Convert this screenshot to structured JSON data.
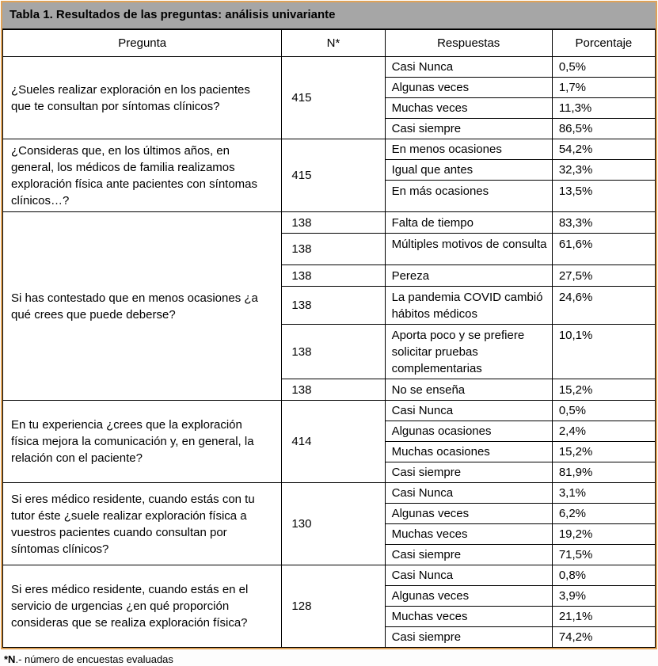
{
  "colors": {
    "frame_border": "#dfa258",
    "title_bg": "#a6a6a6"
  },
  "table": {
    "title": "Tabla 1. Resultados de las preguntas: análisis univariante",
    "headers": [
      "Pregunta",
      "N*",
      "Respuestas",
      "Porcentaje"
    ],
    "blocks": [
      {
        "question": "¿Sueles realizar exploración en los pacientes que te consultan por síntomas clínicos?",
        "n": "415",
        "rows": [
          {
            "response": "Casi Nunca",
            "pct": "0,5%"
          },
          {
            "response": "Algunas veces",
            "pct": "1,7%"
          },
          {
            "response": "Muchas veces",
            "pct": "11,3%"
          },
          {
            "response": "Casi siempre",
            "pct": "86,5%"
          }
        ]
      },
      {
        "question": "¿Consideras que, en los últimos años, en general, los médicos de familia realizamos exploración física ante pacientes con síntomas clínicos…?",
        "n": "415",
        "rows": [
          {
            "response": "En menos ocasiones",
            "pct": "54,2%"
          },
          {
            "response": "Igual que antes",
            "pct": "32,3%"
          },
          {
            "response": "En más ocasiones",
            "pct": "13,5%"
          }
        ]
      },
      {
        "question": "Si has contestado que en menos ocasiones ¿a qué crees que puede deberse?",
        "rows": [
          {
            "n": "138",
            "response": "Falta de tiempo",
            "pct": "83,3%"
          },
          {
            "n": "138",
            "response": "Múltiples motivos de consulta",
            "pct": "61,6%"
          },
          {
            "n": "138",
            "response": "Pereza",
            "pct": "27,5%"
          },
          {
            "n": "138",
            "response": "La pandemia COVID cambió hábitos médicos",
            "pct": "24,6%"
          },
          {
            "n": "138",
            "response": "Aporta poco y se prefiere solicitar pruebas complementarias",
            "pct": "10,1%"
          },
          {
            "n": "138",
            "response": "No se enseña",
            "pct": "15,2%"
          }
        ]
      },
      {
        "question": "En tu experiencia ¿crees que la exploración física mejora la comunicación y, en general, la relación con el paciente?",
        "n": "414",
        "rows": [
          {
            "response": "Casi Nunca",
            "pct": "0,5%"
          },
          {
            "response": "Algunas ocasiones",
            "pct": "2,4%"
          },
          {
            "response": "Muchas ocasiones",
            "pct": "15,2%"
          },
          {
            "response": "Casi siempre",
            "pct": "81,9%"
          }
        ]
      },
      {
        "question": "Si eres médico residente, cuando estás con tu tutor éste ¿suele realizar exploración física a vuestros pacientes cuando consultan por síntomas clínicos?",
        "n": "130",
        "rows": [
          {
            "response": "Casi Nunca",
            "pct": "3,1%"
          },
          {
            "response": "Algunas veces",
            "pct": "6,2%"
          },
          {
            "response": "Muchas veces",
            "pct": "19,2%"
          },
          {
            "response": "Casi siempre",
            "pct": "71,5%"
          }
        ]
      },
      {
        "question": "Si eres médico residente, cuando estás en el servicio de urgencias ¿en qué proporción consideras que se realiza exploración física?",
        "n": "128",
        "rows": [
          {
            "response": "Casi Nunca",
            "pct": "0,8%"
          },
          {
            "response": "Algunas veces",
            "pct": "3,9%"
          },
          {
            "response": "Muchas veces",
            "pct": "21,1%"
          },
          {
            "response": "Casi siempre",
            "pct": "74,2%"
          }
        ]
      }
    ]
  },
  "footnote": {
    "marker": "*N",
    "text": ".- número de encuestas evaluadas"
  }
}
